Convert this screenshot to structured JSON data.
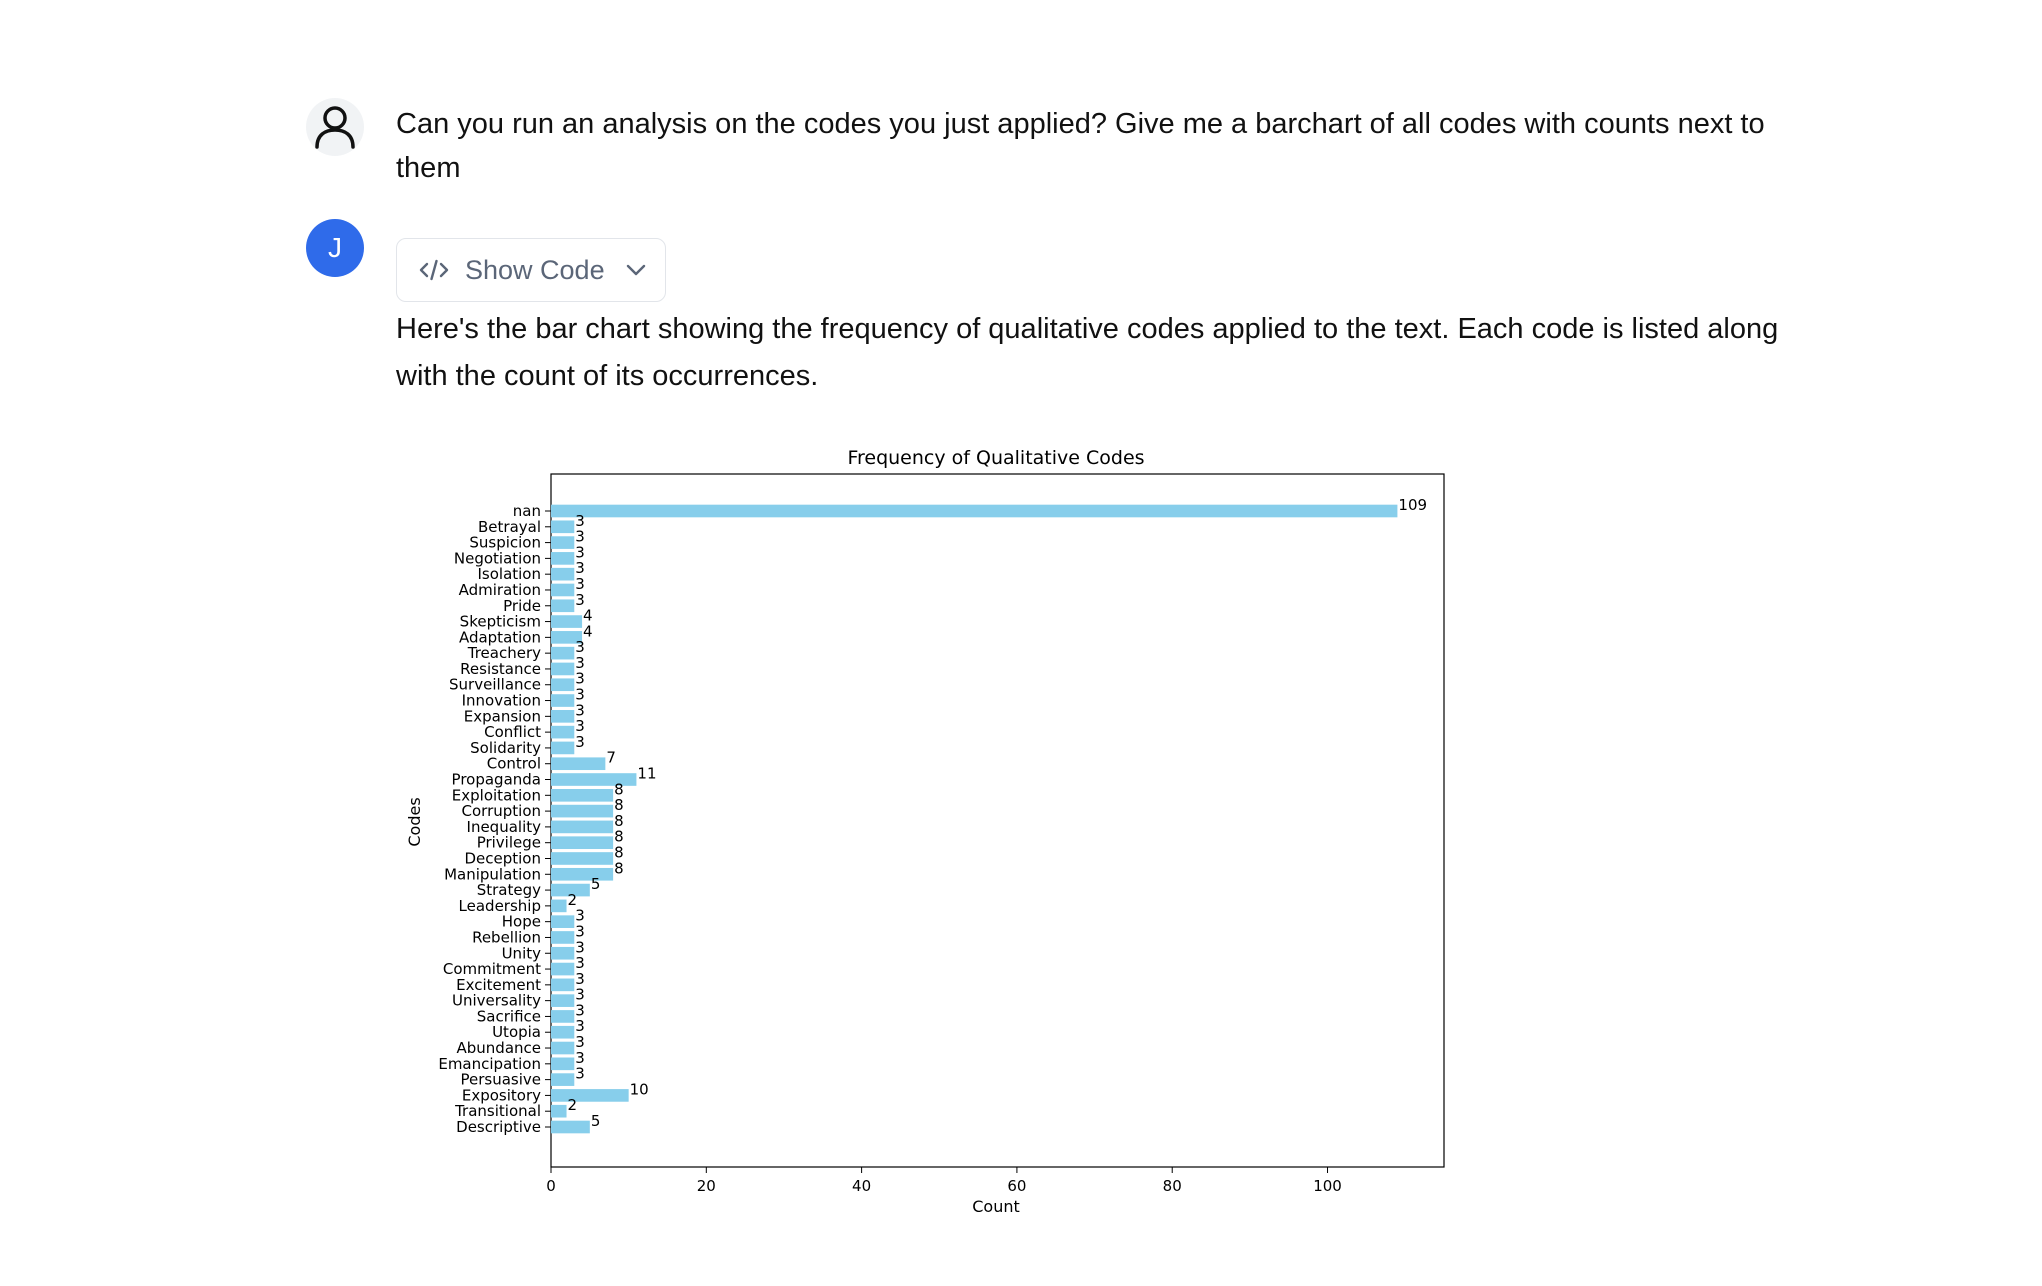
{
  "user_message": {
    "text": "Can you run an analysis on the codes you just applied? Give me a barchart of all codes with counts next to them"
  },
  "assistant_message": {
    "avatar_letter": "J",
    "show_code_label": "Show Code",
    "text": "Here's the bar chart showing the frequency of qualitative codes applied to the text. Each code is listed along with the count of its occurrences."
  },
  "colors": {
    "bar": "#87ceeb",
    "assistant_avatar": "#2f6bea"
  },
  "chart_data": {
    "type": "bar",
    "orientation": "horizontal",
    "title": "Frequency of Qualitative Codes",
    "xlabel": "Count",
    "ylabel": "Codes",
    "xlim": [
      0,
      115
    ],
    "xticks": [
      0,
      20,
      40,
      60,
      80,
      100
    ],
    "grid": false,
    "categories": [
      "nan",
      "Betrayal",
      "Suspicion",
      "Negotiation",
      "Isolation",
      "Admiration",
      "Pride",
      "Skepticism",
      "Adaptation",
      "Treachery",
      "Resistance",
      "Surveillance",
      "Innovation",
      "Expansion",
      "Conflict",
      "Solidarity",
      "Control",
      "Propaganda",
      "Exploitation",
      "Corruption",
      "Inequality",
      "Privilege",
      "Deception",
      "Manipulation",
      "Strategy",
      "Leadership",
      "Hope",
      "Rebellion",
      "Unity",
      "Commitment",
      "Excitement",
      "Universality",
      "Sacrifice",
      "Utopia",
      "Abundance",
      "Emancipation",
      "Persuasive",
      "Expository",
      "Transitional",
      "Descriptive"
    ],
    "values": [
      109,
      3,
      3,
      3,
      3,
      3,
      3,
      4,
      4,
      3,
      3,
      3,
      3,
      3,
      3,
      3,
      7,
      11,
      8,
      8,
      8,
      8,
      8,
      8,
      5,
      2,
      3,
      3,
      3,
      3,
      3,
      3,
      3,
      3,
      3,
      3,
      3,
      10,
      2,
      5
    ]
  }
}
